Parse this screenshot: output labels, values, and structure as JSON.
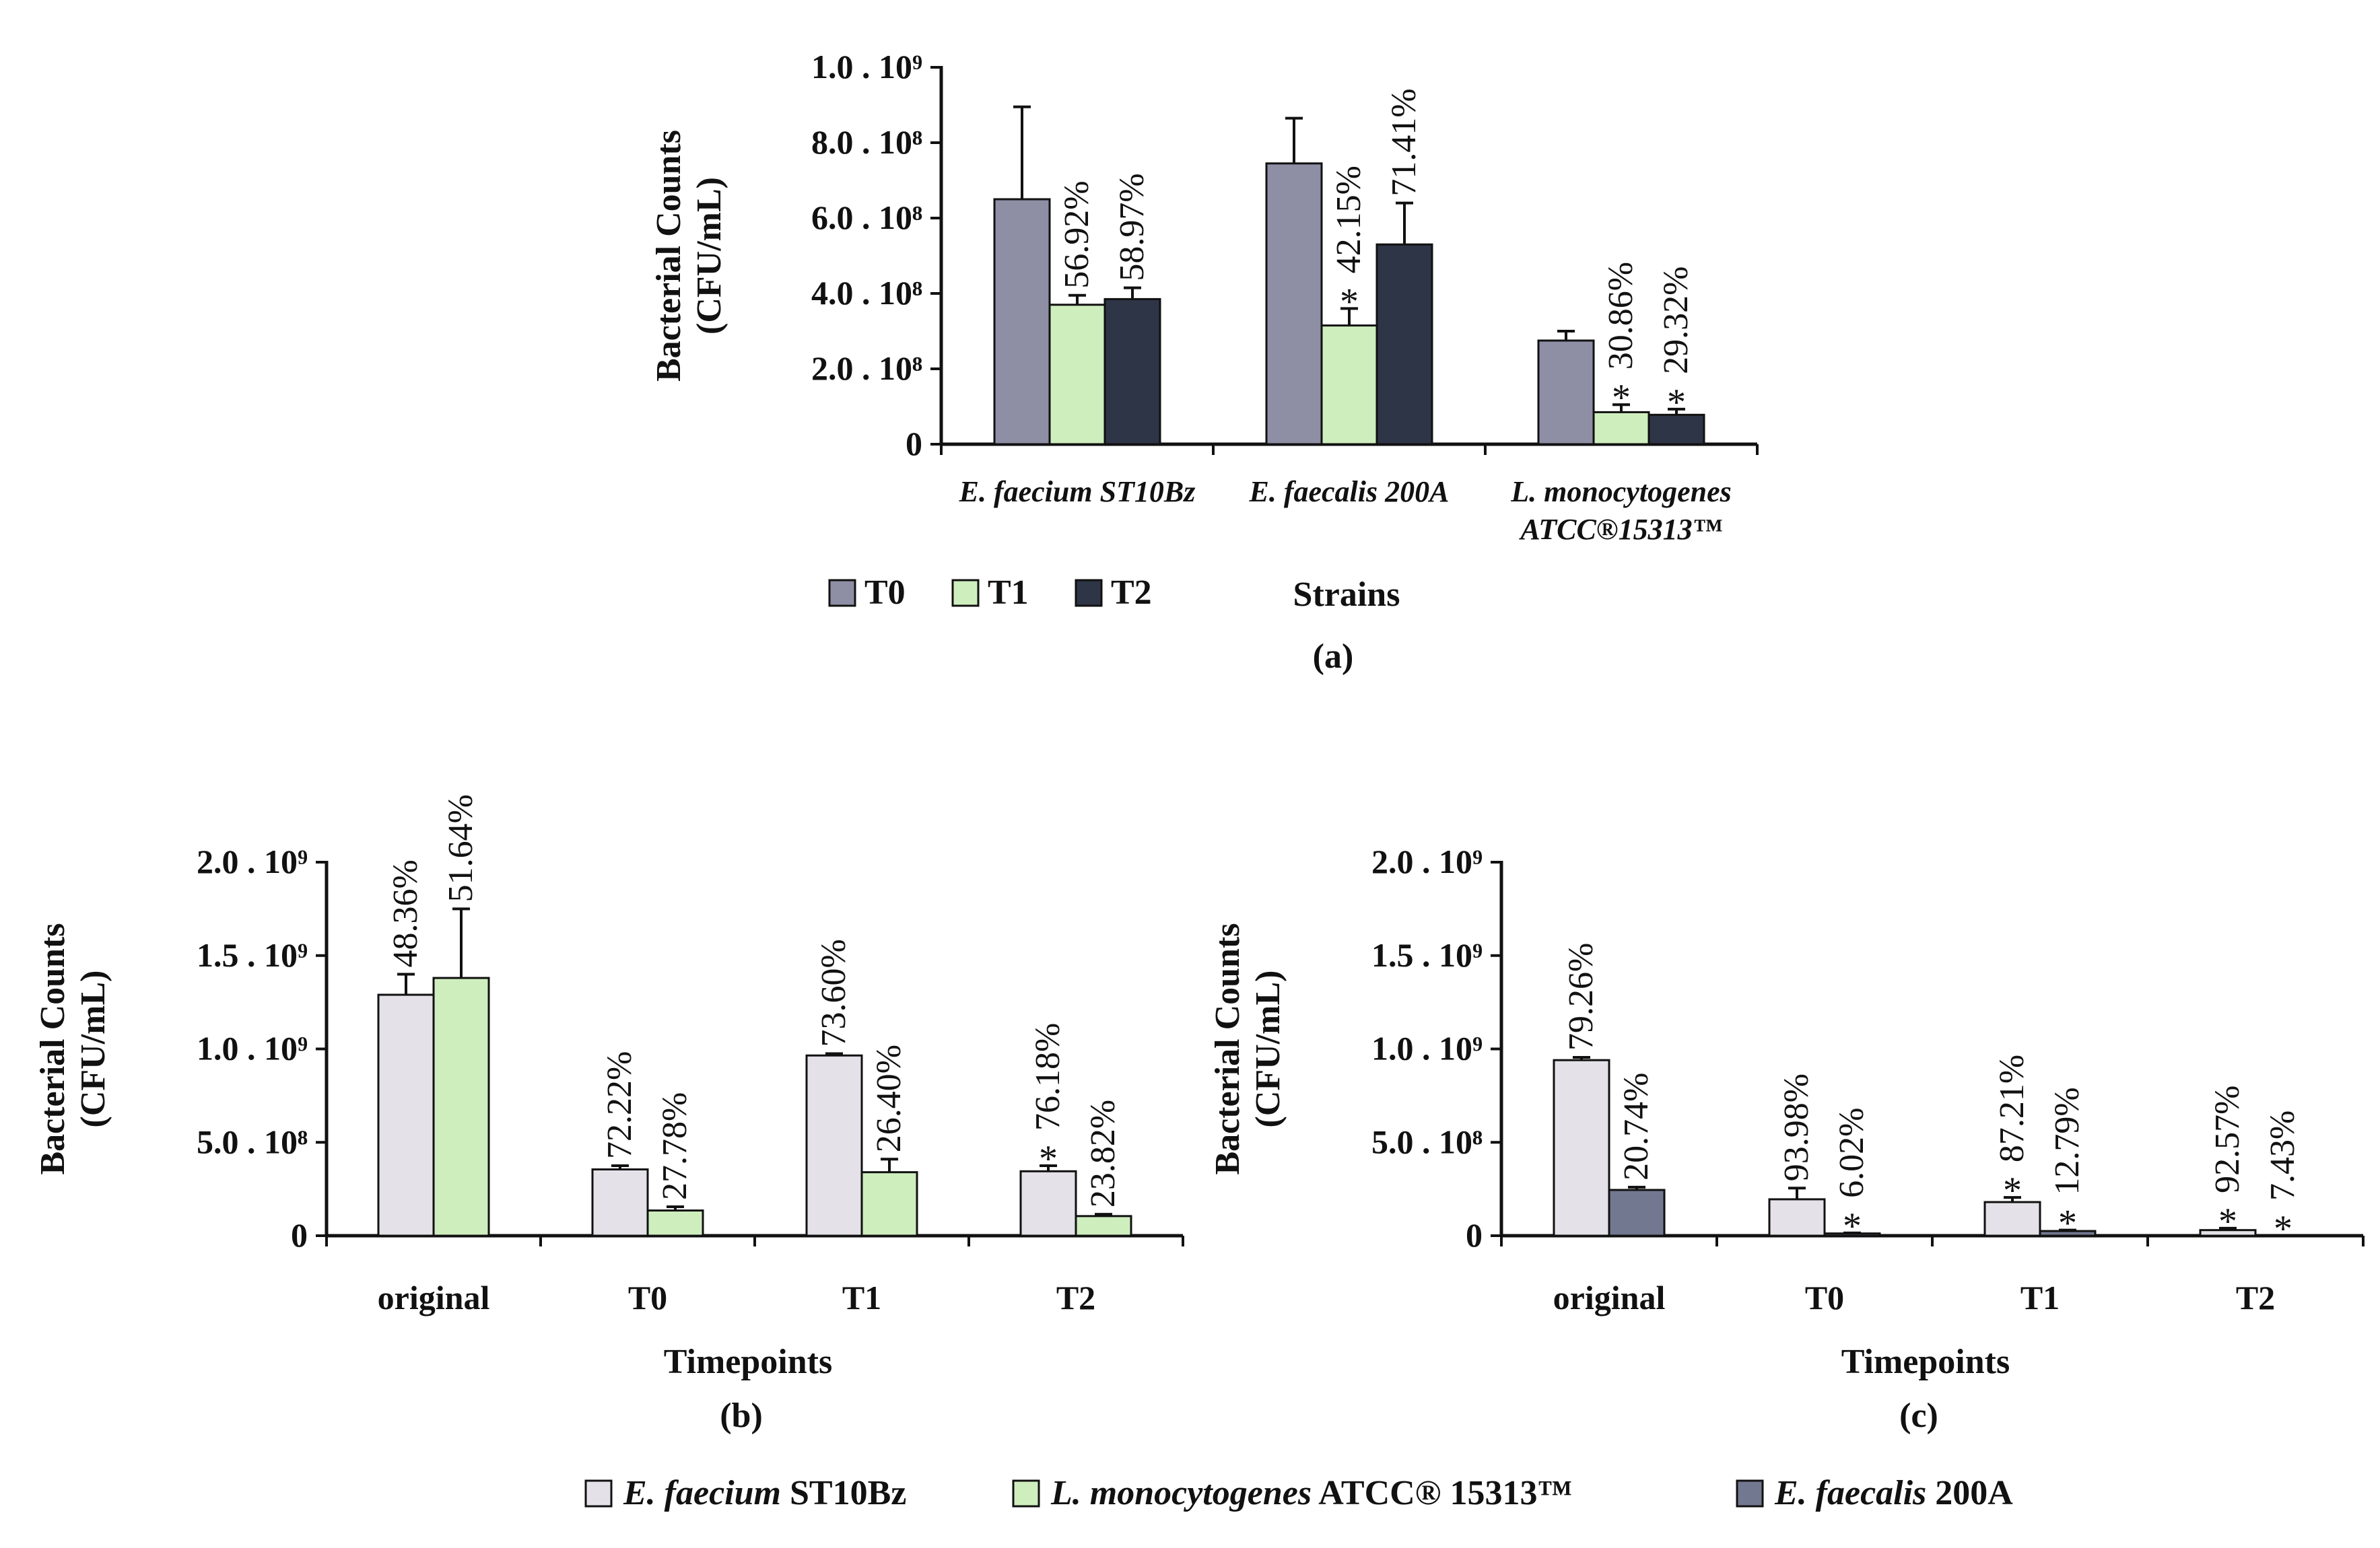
{
  "colors": {
    "T0": "#8e8fa5",
    "T1": "#cfeebe",
    "T2": "#2e3546",
    "faecium": "#e4e2e8",
    "listeria": "#cfeebe",
    "faecalis": "#737891"
  },
  "chart_data": [
    {
      "id": "a",
      "type": "bar",
      "panel_label": "(a)",
      "xlabel": "Strains",
      "ylabel_lines": [
        "Bacterial Counts",
        "(CFU/mL)"
      ],
      "yticks": [
        "0",
        "2.0 . 10⁸",
        "4.0 . 10⁸",
        "6.0 . 10⁸",
        "8.0 . 10⁸",
        "1.0 . 10⁹"
      ],
      "ylim": [
        0,
        1000000000
      ],
      "categories": [
        [
          "E. faecium ST10Bz"
        ],
        [
          "E. faecalis 200A"
        ],
        [
          "L. monocytogenes",
          "ATCC®15313™"
        ]
      ],
      "legend": [
        "T0",
        "T1",
        "T2"
      ],
      "series": [
        {
          "name": "T0",
          "values": [
            650000000,
            745000000,
            275000000
          ],
          "errors": [
            245000000,
            120000000,
            25000000
          ],
          "labels": [
            "",
            "",
            ""
          ],
          "stars": [
            false,
            false,
            false
          ]
        },
        {
          "name": "T1",
          "values": [
            370000000,
            315000000,
            85000000
          ],
          "errors": [
            25000000,
            45000000,
            20000000
          ],
          "labels": [
            "56.92%",
            "42.15%",
            "30.86%"
          ],
          "stars": [
            false,
            true,
            true
          ]
        },
        {
          "name": "T2",
          "values": [
            385000000,
            530000000,
            78000000
          ],
          "errors": [
            30000000,
            110000000,
            15000000
          ],
          "labels": [
            "58.97%",
            "71.41%",
            "29.32%"
          ],
          "stars": [
            false,
            false,
            true
          ]
        }
      ]
    },
    {
      "id": "b",
      "type": "bar",
      "panel_label": "(b)",
      "xlabel": "Timepoints",
      "ylabel_lines": [
        "Bacterial Counts",
        "(CFU/mL)"
      ],
      "yticks": [
        "0",
        "5.0 . 10⁸",
        "1.0 . 10⁹",
        "1.5 . 10⁹",
        "2.0 . 10⁹"
      ],
      "ylim": [
        0,
        2000000000
      ],
      "categories": [
        [
          "original"
        ],
        [
          "T0"
        ],
        [
          "T1"
        ],
        [
          "T2"
        ]
      ],
      "series": [
        {
          "name": "E. faecium ST10Bz",
          "values": [
            1290000000,
            355000000,
            965000000,
            345000000
          ],
          "errors": [
            110000000,
            20000000,
            10000000,
            30000000
          ],
          "labels": [
            "48.36%",
            "72.22%",
            "73.60%",
            "76.18%"
          ],
          "stars": [
            false,
            false,
            false,
            true
          ]
        },
        {
          "name": "L. monocytogenes ATCC® 15313™",
          "values": [
            1380000000,
            135000000,
            340000000,
            105000000
          ],
          "errors": [
            370000000,
            20000000,
            70000000,
            10000000
          ],
          "labels": [
            "51.64%",
            "27.78%",
            "26.40%",
            "23.82%"
          ],
          "stars": [
            false,
            false,
            false,
            false
          ]
        }
      ]
    },
    {
      "id": "c",
      "type": "bar",
      "panel_label": "(c)",
      "xlabel": "Timepoints",
      "ylabel_lines": [
        "Bacterial Counts",
        "(CFU/mL)"
      ],
      "yticks": [
        "0",
        "5.0 . 10⁸",
        "1.0 . 10⁹",
        "1.5 . 10⁹",
        "2.0 . 10⁹"
      ],
      "ylim": [
        0,
        2000000000
      ],
      "categories": [
        [
          "original"
        ],
        [
          "T0"
        ],
        [
          "T1"
        ],
        [
          "T2"
        ]
      ],
      "series": [
        {
          "name": "E. faecium ST10Bz",
          "values": [
            940000000,
            195000000,
            180000000,
            30000000
          ],
          "errors": [
            15000000,
            60000000,
            25000000,
            10000000
          ],
          "labels": [
            "79.26%",
            "93.98%",
            "87.21%",
            "92.57%"
          ],
          "stars": [
            false,
            false,
            true,
            true
          ]
        },
        {
          "name": "E. faecalis 200A",
          "values": [
            245000000,
            12000000,
            25000000,
            0
          ],
          "errors": [
            15000000,
            3000000,
            5000000,
            0
          ],
          "labels": [
            "20.74%",
            "6.02%",
            "12.79%",
            "7.43%"
          ],
          "stars": [
            false,
            true,
            true,
            true
          ]
        }
      ]
    }
  ],
  "bottom_legend": [
    {
      "italic": "E. faecium",
      "plain": " ST10Bz",
      "color_key": "faecium"
    },
    {
      "italic": "L. monocytogenes",
      "plain": " ATCC® 15313™",
      "color_key": "listeria"
    },
    {
      "italic": "E. faecalis",
      "plain": " 200A",
      "color_key": "faecalis"
    }
  ],
  "star_symbol": "*"
}
